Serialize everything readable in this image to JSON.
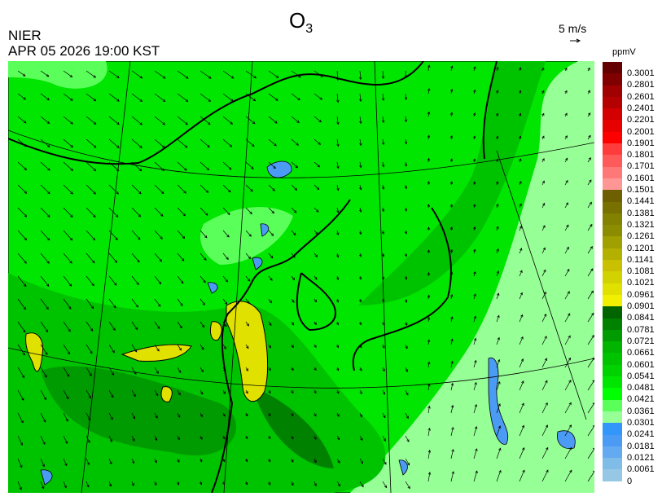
{
  "header": {
    "species": "O",
    "species_sub": "3",
    "organization": "NIER",
    "datetime": "APR 05 2026 19:00 KST"
  },
  "wind_reference": {
    "label": "5 m/s",
    "icon": "arrow-right-icon"
  },
  "colorbar": {
    "unit": "ppmV",
    "labels": [
      "0.3001",
      "0.2801",
      "0.2601",
      "0.2401",
      "0.2201",
      "0.2001",
      "0.1901",
      "0.1801",
      "0.1701",
      "0.1601",
      "0.1501",
      "0.1441",
      "0.1381",
      "0.1321",
      "0.1261",
      "0.1201",
      "0.1141",
      "0.1081",
      "0.1021",
      "0.0961",
      "0.0901",
      "0.0841",
      "0.0781",
      "0.0721",
      "0.0661",
      "0.0601",
      "0.0541",
      "0.0481",
      "0.0421",
      "0.0361",
      "0.0301",
      "0.0241",
      "0.0181",
      "0.0121",
      "0.0061",
      "0"
    ],
    "colors_top_to_bottom": [
      "#640000",
      "#800000",
      "#a00000",
      "#b40000",
      "#d20000",
      "#e60000",
      "#ff0000",
      "#ff3c3c",
      "#ff5a5a",
      "#ff7878",
      "#ff9696",
      "#6e6000",
      "#787000",
      "#828200",
      "#8c8c00",
      "#a0a000",
      "#b4b000",
      "#c8c000",
      "#d2d200",
      "#e1e100",
      "#f0f000",
      "#006400",
      "#008200",
      "#009b00",
      "#00b400",
      "#00c300",
      "#00d200",
      "#00e600",
      "#00ff00",
      "#5aff5a",
      "#96ff96",
      "#3296fa",
      "#4b9bf5",
      "#64aaf0",
      "#80bce8",
      "#96c8e6"
    ]
  },
  "map": {
    "region": "East Asia",
    "layers": [
      "ozone-concentration",
      "wind-vectors",
      "coastlines",
      "borders",
      "graticule"
    ],
    "dominant_color": "#00e600"
  }
}
